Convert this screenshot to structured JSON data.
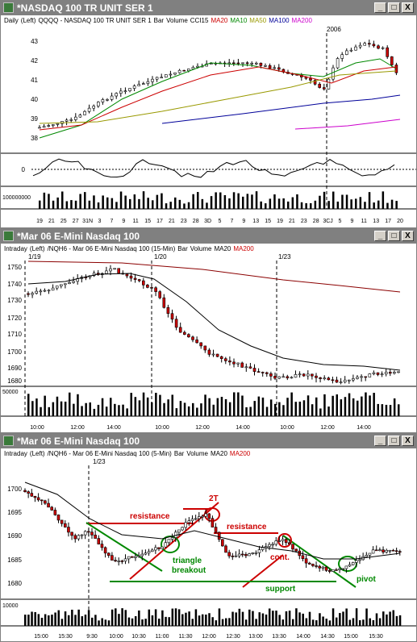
{
  "colors": {
    "ma20": "#cc0000",
    "ma10": "#008800",
    "ma50": "#999900",
    "ma100": "#000099",
    "ma200": "#cc00cc",
    "up": "#ffffff",
    "down": "#cc0000",
    "cci": "#000000",
    "annot_red": "#cc0000",
    "annot_green": "#008800"
  },
  "window1": {
    "title": "*NASDAQ 100 TR UNIT SER 1",
    "legend": {
      "period": "Daily",
      "axis": "(Left)",
      "symbol": "QQQQ - NASDAQ 100 TR UNIT SER 1",
      "bar": "Bar",
      "volume": "Volume",
      "cci": "CCI15",
      "ma20": "MA20",
      "ma10": "MA10",
      "ma50": "MA50",
      "ma100": "MA100",
      "ma200": "MA200"
    },
    "year_label": "2006",
    "yticks": [
      "43",
      "42",
      "41",
      "40",
      "39",
      "38"
    ],
    "cci_tick": "0",
    "volume_tick": "100000000",
    "xticks": [
      "19",
      "21",
      "25",
      "27",
      "31N",
      "3",
      "7",
      "9",
      "11",
      "15",
      "17",
      "21",
      "23",
      "28",
      "3D",
      "5",
      "7",
      "9",
      "13",
      "15",
      "19",
      "21",
      "23",
      "28",
      "3CJ",
      "5",
      "9",
      "11",
      "13",
      "17",
      "20"
    ],
    "buttons": {
      "min": "_",
      "max": "□",
      "close": "X"
    }
  },
  "window2": {
    "title": "*Mar 06  E-Mini Nasdaq 100",
    "legend": {
      "period": "Intraday",
      "axis": "(Left)",
      "symbol": "/NQH6 - Mar 06  E-Mini Nasdaq 100 (15-Min)",
      "bar": "Bar",
      "volume": "Volume",
      "ma20": "MA20",
      "ma200": "MA200"
    },
    "day_labels": [
      "1/19",
      "1/20",
      "1/23"
    ],
    "yticks": [
      "1750",
      "1740",
      "1730",
      "1720",
      "1710",
      "1700",
      "1690",
      "1680"
    ],
    "volume_tick": "50000",
    "xticks": [
      "10:00",
      "12:00",
      "14:00",
      "10:00",
      "12:00",
      "14:00",
      "10:00",
      "12:00",
      "14:00"
    ],
    "buttons": {
      "min": "_",
      "max": "□",
      "close": "X"
    }
  },
  "window3": {
    "title": "*Mar 06  E-Mini Nasdaq 100",
    "legend": {
      "period": "Intraday",
      "axis": "(Left)",
      "symbol": "/NQH6 - Mar 06  E-Mini Nasdaq 100 (5-Min)",
      "bar": "Bar",
      "volume": "Volume",
      "ma20": "MA20",
      "ma200": "MA200"
    },
    "day_label": "1/23",
    "yticks": [
      "1700",
      "1695",
      "1690",
      "1685",
      "1680"
    ],
    "volume_tick": "10000",
    "xticks": [
      "15:00",
      "15:30",
      "9:30",
      "10:00",
      "10:30",
      "11:00",
      "11:30",
      "12:00",
      "12:30",
      "13:00",
      "13:30",
      "14:00",
      "14:30",
      "15:00",
      "15:30"
    ],
    "annotations": {
      "resistance1": "resistance",
      "two_t": "2T",
      "resistance2": "resistance",
      "triangle": "triangle",
      "breakout": "breakout",
      "cont": "cont.",
      "support": "support",
      "pivot": "pivot"
    },
    "buttons": {
      "min": "_",
      "max": "□",
      "close": "X"
    }
  }
}
